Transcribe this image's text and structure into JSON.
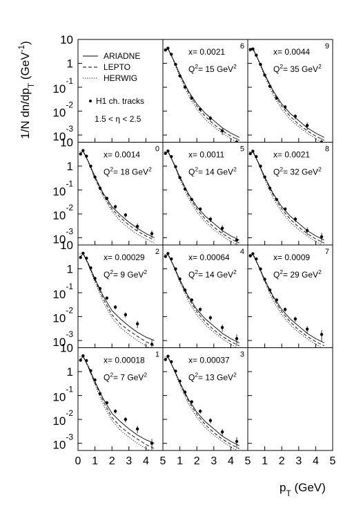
{
  "chart_data": {
    "type": "line",
    "log_y": true,
    "xlim": [
      0,
      5
    ],
    "ylim": [
      0.0005,
      10
    ],
    "xticks": [
      0,
      1,
      2,
      3,
      4,
      5
    ],
    "yticks": [
      10,
      1,
      {
        "value": 0.1,
        "label": "10",
        "sup": "-1"
      },
      {
        "value": 0.01,
        "label": "10",
        "sup": "-2"
      },
      {
        "value": 0.001,
        "label": "10",
        "sup": "-3"
      }
    ],
    "ylabel": [
      {
        "text": "1/N dn/dp"
      },
      {
        "text": "T",
        "shift": "sub"
      },
      {
        "text": " (GeV"
      },
      {
        "text": "-1",
        "shift": "super"
      },
      {
        "text": ")"
      }
    ],
    "xlabel": [
      {
        "text": "p"
      },
      {
        "text": "T",
        "shift": "sub"
      },
      {
        "text": " (GeV)"
      }
    ],
    "series_styles": [
      {
        "name": "ARIADNE",
        "dash": "solid"
      },
      {
        "name": "LEPTO",
        "dash": "dashed"
      },
      {
        "name": "HERWIG",
        "dash": "dotted"
      }
    ],
    "data_name": "H1 ch. tracks",
    "eta_label": "1.5 < η < 2.5",
    "data_x": [
      0.15,
      0.3,
      0.5,
      0.75,
      1.0,
      1.3,
      1.7,
      2.2,
      2.8,
      3.5,
      4.35
    ],
    "curve_x": [
      0.1,
      0.3,
      0.6,
      1.0,
      1.5,
      2.0,
      2.5,
      3.0,
      3.5,
      4.0,
      4.5
    ],
    "panels": [
      {
        "number": "6",
        "x_label": "x= 0.0021",
        "q2_label": [
          {
            "text": "Q"
          },
          {
            "text": "2",
            "shift": "super"
          },
          {
            "text": "= 15 GeV"
          },
          {
            "text": "2",
            "shift": "super"
          }
        ],
        "data": {
          "values": [
            3.6,
            4.3,
            2.4,
            0.9,
            0.3,
            0.1,
            0.035,
            0.012,
            0.005,
            0.0015,
            0.0005
          ],
          "errors": [
            0.36,
            0.34,
            0.19,
            0.07,
            0.03,
            0.01,
            0.005,
            0.0024,
            0.0013,
            0.0005,
            0.00025
          ]
        },
        "curves": [
          [
            3.2,
            4.0,
            1.5,
            0.35,
            0.07,
            0.02,
            0.008,
            0.004,
            0.002,
            0.0012,
            0.0008
          ],
          [
            3.2,
            4.0,
            1.5,
            0.33,
            0.06,
            0.016,
            0.006,
            0.0028,
            0.0015,
            0.0009,
            0.0006
          ],
          [
            4.0,
            4.5,
            1.4,
            0.28,
            0.045,
            0.012,
            0.0045,
            0.0022,
            0.0012,
            0.0007,
            0.00045
          ]
        ]
      },
      {
        "number": "9",
        "x_label": "x= 0.0044",
        "q2_label": [
          {
            "text": "Q"
          },
          {
            "text": "2",
            "shift": "super"
          },
          {
            "text": "= 35 GeV"
          },
          {
            "text": "2",
            "shift": "super"
          }
        ],
        "data": {
          "values": [
            3.8,
            4.0,
            2.2,
            0.9,
            0.32,
            0.11,
            0.035,
            0.015,
            0.006,
            0.0025,
            0.0005
          ],
          "errors": [
            0.38,
            0.32,
            0.18,
            0.07,
            0.03,
            0.011,
            0.005,
            0.003,
            0.0015,
            0.0009,
            0.00025
          ]
        },
        "curves": [
          [
            3.2,
            4.0,
            1.5,
            0.35,
            0.07,
            0.02,
            0.008,
            0.004,
            0.002,
            0.0012,
            0.0008
          ],
          [
            3.2,
            4.0,
            1.5,
            0.33,
            0.06,
            0.016,
            0.006,
            0.0028,
            0.0015,
            0.0009,
            0.0006
          ],
          [
            4.0,
            4.5,
            1.4,
            0.28,
            0.045,
            0.012,
            0.0045,
            0.0022,
            0.0012,
            0.0007,
            0.00045
          ]
        ]
      },
      {
        "number": "0",
        "x_label": "x= 0.0014",
        "q2_label": [
          {
            "text": "Q"
          },
          {
            "text": "2",
            "shift": "super"
          },
          {
            "text": "= 18 GeV"
          },
          {
            "text": "2",
            "shift": "super"
          }
        ],
        "data": {
          "values": [
            3.2,
            4.5,
            2.6,
            1.0,
            0.35,
            0.12,
            0.045,
            0.02,
            0.009,
            0.003,
            0.0015
          ],
          "errors": [
            0.32,
            0.36,
            0.21,
            0.08,
            0.035,
            0.012,
            0.007,
            0.004,
            0.002,
            0.001,
            0.0005
          ]
        },
        "curves": [
          [
            3.2,
            4.2,
            1.6,
            0.36,
            0.07,
            0.02,
            0.009,
            0.0045,
            0.0025,
            0.0015,
            0.001
          ],
          [
            3.2,
            4.2,
            1.6,
            0.33,
            0.06,
            0.016,
            0.007,
            0.0034,
            0.0019,
            0.0012,
            0.0008
          ],
          [
            4.0,
            4.6,
            1.5,
            0.28,
            0.05,
            0.013,
            0.005,
            0.0025,
            0.0014,
            0.0009,
            0.0006
          ]
        ]
      },
      {
        "number": "5",
        "x_label": "x= 0.0011",
        "q2_label": [
          {
            "text": "Q"
          },
          {
            "text": "2",
            "shift": "super"
          },
          {
            "text": "= 14 GeV"
          },
          {
            "text": "2",
            "shift": "super"
          }
        ],
        "data": {
          "values": [
            3.4,
            4.3,
            2.5,
            0.95,
            0.33,
            0.11,
            0.04,
            0.016,
            0.006,
            0.0025,
            0.0008
          ],
          "errors": [
            0.34,
            0.34,
            0.2,
            0.08,
            0.03,
            0.011,
            0.006,
            0.003,
            0.0015,
            0.0009,
            0.0004
          ]
        },
        "curves": [
          [
            3.2,
            4.0,
            1.5,
            0.35,
            0.07,
            0.02,
            0.008,
            0.004,
            0.002,
            0.0012,
            0.0008
          ],
          [
            3.2,
            4.0,
            1.5,
            0.33,
            0.06,
            0.016,
            0.006,
            0.0028,
            0.0015,
            0.0009,
            0.0006
          ],
          [
            4.0,
            4.5,
            1.4,
            0.28,
            0.045,
            0.012,
            0.0045,
            0.0022,
            0.0012,
            0.0007,
            0.00045
          ]
        ]
      },
      {
        "number": "8",
        "x_label": "x= 0.0021",
        "q2_label": [
          {
            "text": "Q"
          },
          {
            "text": "2",
            "shift": "super"
          },
          {
            "text": "= 32 GeV"
          },
          {
            "text": "2",
            "shift": "super"
          }
        ],
        "data": {
          "values": [
            3.3,
            4.2,
            2.5,
            1.0,
            0.35,
            0.12,
            0.04,
            0.016,
            0.006,
            0.002,
            0.0011
          ],
          "errors": [
            0.33,
            0.34,
            0.2,
            0.08,
            0.035,
            0.012,
            0.006,
            0.003,
            0.0015,
            0.0007,
            0.0005
          ]
        },
        "curves": [
          [
            3.2,
            4.0,
            1.5,
            0.35,
            0.07,
            0.02,
            0.008,
            0.004,
            0.002,
            0.0012,
            0.0008
          ],
          [
            3.2,
            4.0,
            1.5,
            0.33,
            0.06,
            0.016,
            0.006,
            0.0028,
            0.0015,
            0.0009,
            0.0006
          ],
          [
            4.0,
            4.5,
            1.4,
            0.28,
            0.045,
            0.012,
            0.0045,
            0.0022,
            0.0012,
            0.0007,
            0.00045
          ]
        ]
      },
      {
        "number": "2",
        "x_label": "x= 0.00029",
        "q2_label": [
          {
            "text": "Q"
          },
          {
            "text": "2",
            "shift": "super"
          },
          {
            "text": "=  9 GeV"
          },
          {
            "text": "2",
            "shift": "super"
          }
        ],
        "data": {
          "values": [
            3.0,
            4.5,
            2.8,
            1.1,
            0.4,
            0.15,
            0.06,
            0.025,
            0.012,
            0.005,
            0.0007
          ],
          "errors": [
            0.3,
            0.36,
            0.22,
            0.09,
            0.04,
            0.015,
            0.009,
            0.005,
            0.003,
            0.0017,
            0.00035
          ]
        },
        "curves": [
          [
            3.0,
            4.3,
            1.7,
            0.38,
            0.07,
            0.018,
            0.008,
            0.004,
            0.0022,
            0.0014,
            0.001
          ],
          [
            3.0,
            4.3,
            1.6,
            0.34,
            0.055,
            0.012,
            0.005,
            0.0026,
            0.0015,
            0.0009,
            0.0006
          ],
          [
            4.2,
            4.8,
            1.5,
            0.28,
            0.04,
            0.009,
            0.0035,
            0.0018,
            0.001,
            0.0006,
            0.0004
          ]
        ]
      },
      {
        "number": "4",
        "x_label": "x= 0.00064",
        "q2_label": [
          {
            "text": "Q"
          },
          {
            "text": "2",
            "shift": "super"
          },
          {
            "text": "= 14 GeV"
          },
          {
            "text": "2",
            "shift": "super"
          }
        ],
        "data": {
          "values": [
            3.3,
            4.4,
            2.6,
            1.0,
            0.38,
            0.13,
            0.05,
            0.02,
            0.009,
            0.0035,
            0.0012
          ],
          "errors": [
            0.33,
            0.35,
            0.21,
            0.08,
            0.038,
            0.013,
            0.0075,
            0.004,
            0.0022,
            0.0012,
            0.0006
          ]
        },
        "curves": [
          [
            3.2,
            4.0,
            1.5,
            0.35,
            0.07,
            0.02,
            0.008,
            0.004,
            0.002,
            0.0012,
            0.0008
          ],
          [
            3.2,
            4.0,
            1.5,
            0.33,
            0.06,
            0.016,
            0.006,
            0.0028,
            0.0015,
            0.0009,
            0.0006
          ],
          [
            4.0,
            4.5,
            1.4,
            0.28,
            0.045,
            0.012,
            0.0045,
            0.0022,
            0.0012,
            0.0007,
            0.00045
          ]
        ]
      },
      {
        "number": "7",
        "x_label": "x= 0.0009",
        "q2_label": [
          {
            "text": "Q"
          },
          {
            "text": "2",
            "shift": "super"
          },
          {
            "text": "= 29 GeV"
          },
          {
            "text": "2",
            "shift": "super"
          }
        ],
        "data": {
          "values": [
            3.5,
            4.3,
            2.6,
            1.0,
            0.37,
            0.13,
            0.05,
            0.02,
            0.008,
            0.003,
            0.0018
          ],
          "errors": [
            0.35,
            0.34,
            0.21,
            0.08,
            0.037,
            0.013,
            0.0075,
            0.004,
            0.002,
            0.001,
            0.0009
          ]
        },
        "curves": [
          [
            3.2,
            4.0,
            1.5,
            0.35,
            0.07,
            0.02,
            0.008,
            0.004,
            0.002,
            0.0012,
            0.0008
          ],
          [
            3.2,
            4.0,
            1.5,
            0.33,
            0.06,
            0.016,
            0.006,
            0.0028,
            0.0015,
            0.0009,
            0.0006
          ],
          [
            4.0,
            4.5,
            1.4,
            0.28,
            0.045,
            0.012,
            0.0045,
            0.0022,
            0.0012,
            0.0007,
            0.00045
          ]
        ]
      },
      {
        "number": "1",
        "x_label": "x= 0.00018",
        "q2_label": [
          {
            "text": "Q"
          },
          {
            "text": "2",
            "shift": "super"
          },
          {
            "text": "=  7 GeV"
          },
          {
            "text": "2",
            "shift": "super"
          }
        ],
        "data": {
          "values": [
            3.0,
            4.6,
            2.9,
            1.1,
            0.45,
            0.12,
            0.05,
            0.022,
            0.01,
            0.004,
            0.001
          ],
          "errors": [
            0.3,
            0.37,
            0.23,
            0.09,
            0.045,
            0.012,
            0.0075,
            0.0044,
            0.0025,
            0.0014,
            0.0005
          ]
        },
        "curves": [
          [
            3.0,
            4.3,
            1.7,
            0.38,
            0.07,
            0.018,
            0.008,
            0.004,
            0.0022,
            0.0014,
            0.001
          ],
          [
            3.0,
            4.3,
            1.6,
            0.34,
            0.055,
            0.012,
            0.005,
            0.0026,
            0.0015,
            0.0009,
            0.0006
          ],
          [
            4.2,
            4.8,
            1.5,
            0.28,
            0.04,
            0.009,
            0.0035,
            0.0018,
            0.001,
            0.0006,
            0.0004
          ]
        ]
      },
      {
        "number": "3",
        "x_label": "x= 0.00037",
        "q2_label": [
          {
            "text": "Q"
          },
          {
            "text": "2",
            "shift": "super"
          },
          {
            "text": "= 13 GeV"
          },
          {
            "text": "2",
            "shift": "super"
          }
        ],
        "data": {
          "values": [
            3.2,
            4.4,
            2.6,
            1.05,
            0.4,
            0.14,
            0.055,
            0.022,
            0.009,
            0.003,
            0.0012
          ],
          "errors": [
            0.32,
            0.35,
            0.21,
            0.08,
            0.04,
            0.014,
            0.008,
            0.0044,
            0.0022,
            0.001,
            0.0006
          ]
        },
        "curves": [
          [
            3.2,
            4.0,
            1.5,
            0.35,
            0.07,
            0.02,
            0.008,
            0.004,
            0.002,
            0.0012,
            0.0008
          ],
          [
            3.2,
            4.0,
            1.5,
            0.33,
            0.06,
            0.016,
            0.006,
            0.0028,
            0.0015,
            0.0009,
            0.0006
          ],
          [
            4.0,
            4.5,
            1.4,
            0.28,
            0.045,
            0.012,
            0.0045,
            0.0022,
            0.0012,
            0.0007,
            0.00045
          ]
        ]
      }
    ]
  }
}
